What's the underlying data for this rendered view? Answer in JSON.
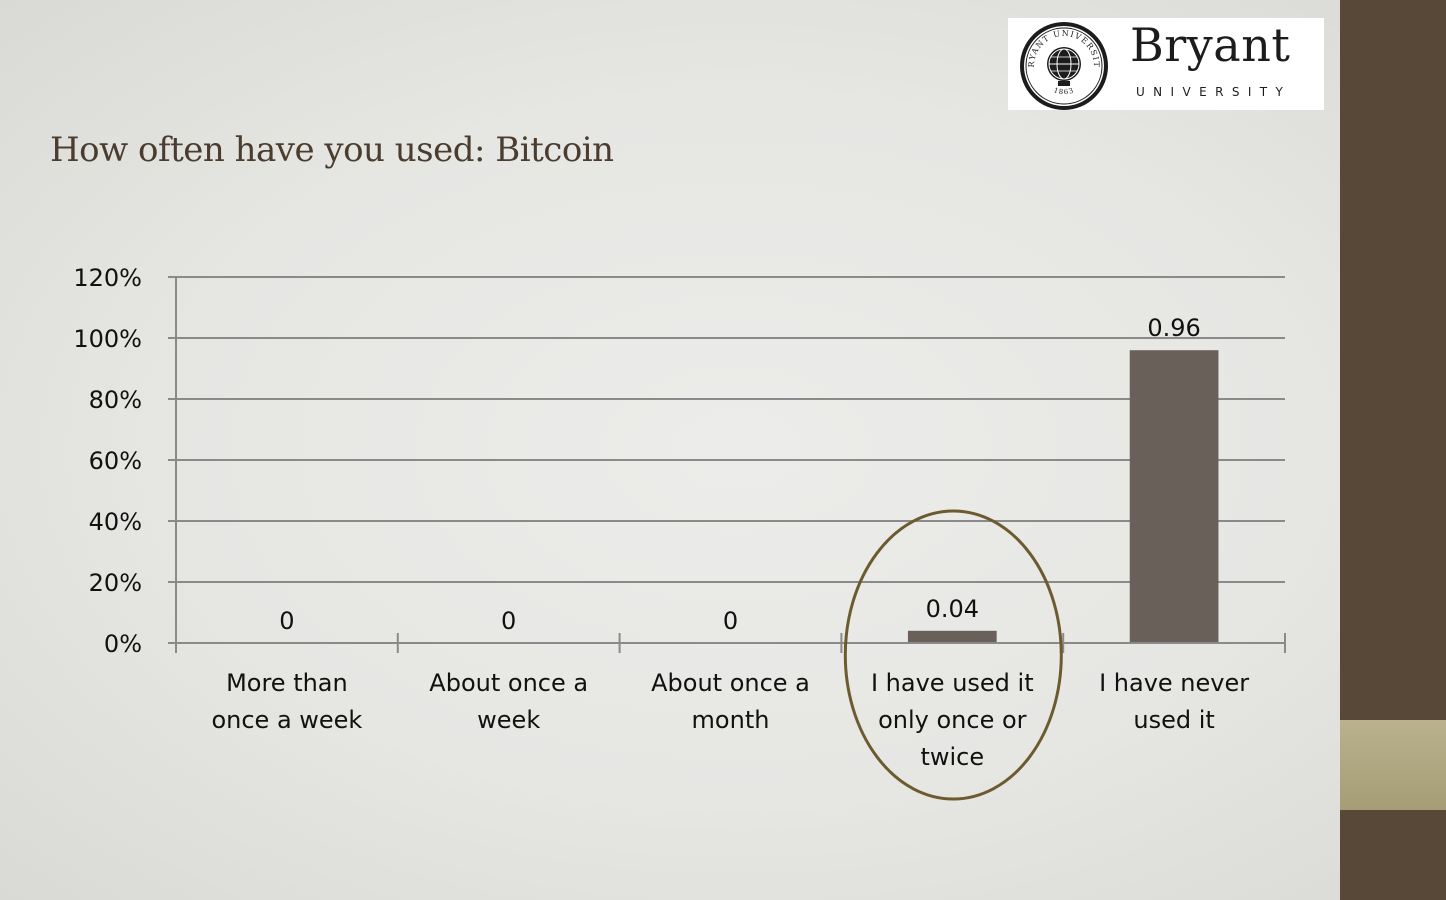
{
  "logo": {
    "name": "Bryant",
    "sub": "UNIVERSITY",
    "seal_ring_text": "BRYANT UNIVERSITY",
    "seal_year": "1863"
  },
  "slide": {
    "title": "How often have you used: Bitcoin"
  },
  "colors": {
    "bar": "#6a605a",
    "grid": "#8a8a8a",
    "axis": "#8a8a8a",
    "highlight_circle": "#6b5b2e",
    "title": "#4a3d2f",
    "sidebar": "#574838",
    "sidebar_band": "#b0a981"
  },
  "chart_data": {
    "type": "bar",
    "title": "",
    "xlabel": "",
    "ylabel": "",
    "categories": [
      [
        "More than",
        "once a week"
      ],
      [
        "About once a",
        "week"
      ],
      [
        "About once a",
        "month"
      ],
      [
        "I have used it",
        "only once or",
        "twice"
      ],
      [
        "I have never",
        "used it"
      ]
    ],
    "values": [
      0,
      0,
      0,
      0.04,
      0.96
    ],
    "data_labels": [
      "0",
      "0",
      "0",
      "0.04",
      "0.96"
    ],
    "ylim": [
      0,
      1.2
    ],
    "yticks": [
      0,
      0.2,
      0.4,
      0.6,
      0.8,
      1.0,
      1.2
    ],
    "ytick_labels": [
      "0%",
      "20%",
      "40%",
      "60%",
      "80%",
      "100%",
      "120%"
    ],
    "grid": true,
    "legend": "none",
    "highlighted_category_index": 3
  }
}
